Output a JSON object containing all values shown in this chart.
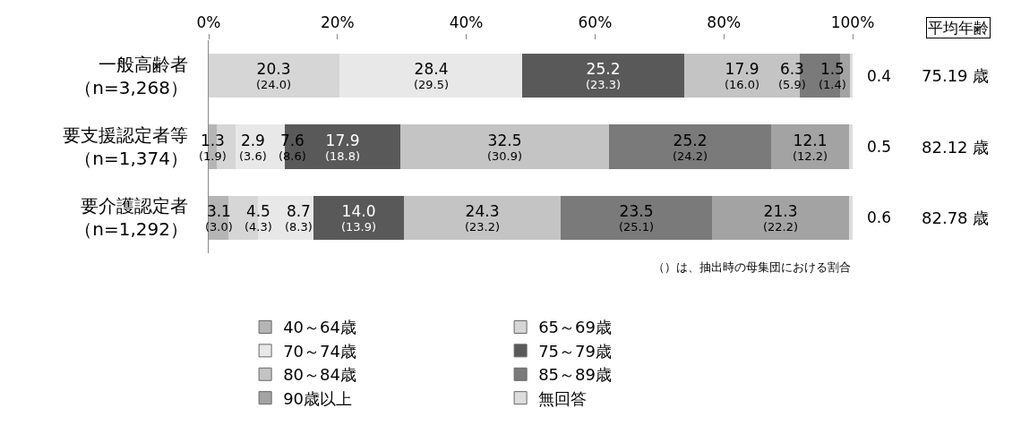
{
  "chart_data": {
    "type": "bar",
    "orientation": "horizontal",
    "stacked": true,
    "categories": [
      "一般高齢者（n=3,268）",
      "要支援認定者等（n=1,374）",
      "要介護認定者（n=1,292）"
    ],
    "xlim": [
      0,
      100
    ],
    "xticks": [
      {
        "value": 0,
        "label": "0%"
      },
      {
        "value": 20,
        "label": "20%"
      },
      {
        "value": 40,
        "label": "40%"
      },
      {
        "value": 60,
        "label": "60%"
      },
      {
        "value": 80,
        "label": "80%"
      },
      {
        "value": 100,
        "label": "100%"
      }
    ],
    "series": [
      {
        "name": "40～64歳",
        "color": "#b5b5b5",
        "values": [
          0,
          1.3,
          3.1
        ],
        "value_labels": [
          null,
          "1.3\n(1.9)",
          "3.1\n(3.0)"
        ]
      },
      {
        "name": "65～69歳",
        "color": "#d6d6d6",
        "values": [
          20.3,
          2.9,
          4.5
        ],
        "value_labels": [
          "20.3\n(24.0)",
          "2.9\n(3.6)",
          "4.5\n(4.3)"
        ]
      },
      {
        "name": "70～74歳",
        "color": "#e8e8e8",
        "values": [
          28.4,
          7.6,
          8.7
        ],
        "value_labels": [
          "28.4\n(29.5)",
          "7.6\n(8.6)",
          "8.7\n(8.3)"
        ]
      },
      {
        "name": "75～79歳",
        "color": "#595959",
        "values": [
          25.2,
          17.9,
          14.0
        ],
        "value_labels": [
          "25.2\n(23.3)",
          "17.9\n(18.8)",
          "14.0\n(13.9)"
        ]
      },
      {
        "name": "80～84歳",
        "color": "#c4c4c4",
        "values": [
          17.9,
          32.5,
          24.3
        ],
        "value_labels": [
          "17.9\n(16.0)",
          "32.5\n(30.9)",
          "24.3\n(23.2)"
        ]
      },
      {
        "name": "85～89歳",
        "color": "#7a7a7a",
        "values": [
          6.3,
          25.2,
          23.5
        ],
        "value_labels": [
          "6.3\n(5.9)",
          "25.2\n(24.2)",
          "23.5\n(25.1)"
        ]
      },
      {
        "name": "90歳以上",
        "color": "#a3a3a3",
        "values": [
          1.5,
          12.1,
          21.3
        ],
        "value_labels": [
          "1.5\n(1.4)",
          "12.1\n(12.2)",
          "21.3\n(22.2)"
        ]
      },
      {
        "name": "無回答",
        "color": "#dcdcdc",
        "values": [
          0.4,
          0.5,
          0.6
        ],
        "value_labels": [
          "0.4",
          "0.5",
          "0.6"
        ]
      }
    ],
    "annotations": [
      "（）は、抽出時の母集団における割合",
      "平均年齢",
      "75.19 歳",
      "82.12 歳",
      "82.78 歳"
    ],
    "legend": "bottom"
  }
}
